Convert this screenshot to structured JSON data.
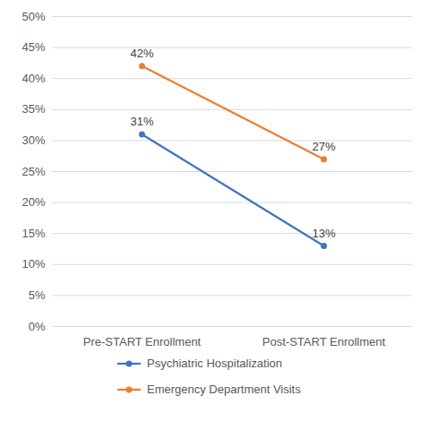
{
  "chart_data": {
    "type": "line",
    "categories": [
      "Pre-START Enrollment",
      "Post-START Enrollment"
    ],
    "series": [
      {
        "name": "Psychiatric Hospitalization",
        "color": "#4472c4",
        "values": [
          31,
          13
        ],
        "value_labels": [
          "31%",
          "13%"
        ],
        "marker": "circle",
        "line_style": "solid"
      },
      {
        "name": "Emergency Department Visits",
        "color": "#ed7d31",
        "values": [
          42,
          27
        ],
        "value_labels": [
          "42%",
          "27%"
        ],
        "marker": "circle",
        "line_style": "solid"
      }
    ],
    "ylim": [
      0,
      50
    ],
    "yticks": [
      {
        "value": 0,
        "label": "0%"
      },
      {
        "value": 5,
        "label": "5%"
      },
      {
        "value": 10,
        "label": "10%"
      },
      {
        "value": 15,
        "label": "15%"
      },
      {
        "value": 20,
        "label": "20%"
      },
      {
        "value": 25,
        "label": "25%"
      },
      {
        "value": 30,
        "label": "30%"
      },
      {
        "value": 35,
        "label": "35%"
      },
      {
        "value": 40,
        "label": "40%"
      },
      {
        "value": 45,
        "label": "45%"
      },
      {
        "value": 50,
        "label": "50%"
      }
    ],
    "grid": true,
    "legend": "bottom",
    "data_labels": true
  }
}
